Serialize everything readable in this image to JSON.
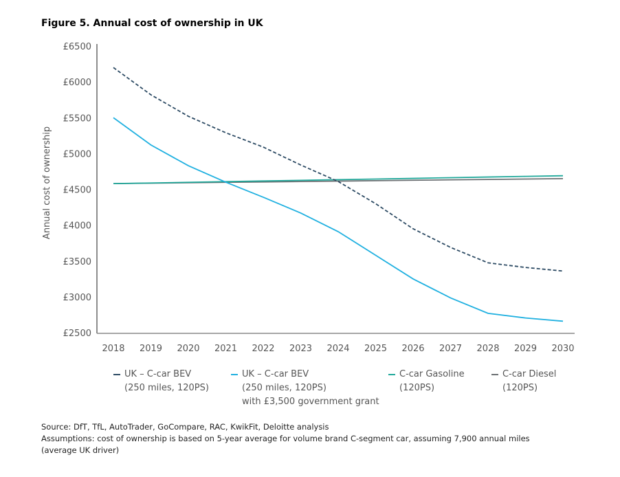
{
  "chart_data": {
    "type": "line",
    "title": "Figure 5. Annual cost of ownership in UK",
    "ylabel": "Annual cost of ownership",
    "xlabel": "",
    "x": [
      2018,
      2019,
      2020,
      2021,
      2022,
      2023,
      2024,
      2025,
      2026,
      2027,
      2028,
      2029,
      2030
    ],
    "ylim": [
      2500,
      6500
    ],
    "yticks": [
      2500,
      3000,
      3500,
      4000,
      4500,
      5000,
      5500,
      6000,
      6500
    ],
    "ytick_labels": [
      "£2500",
      "£3000",
      "£3500",
      "£4000",
      "£4500",
      "£5000",
      "£5500",
      "£6000",
      "£6500"
    ],
    "grid": false,
    "legend_position": "bottom",
    "series": [
      {
        "name": "UK – C-car BEV (250 miles, 120PS)",
        "label_lines": [
          "UK – C-car BEV",
          "(250 miles, 120PS)"
        ],
        "color": "#2c4a63",
        "dash": true,
        "values": [
          6200,
          5820,
          5520,
          5290,
          5090,
          4840,
          4610,
          4300,
          3950,
          3690,
          3475,
          3410,
          3360
        ]
      },
      {
        "name": "UK – C-car BEV (250 miles, 120PS) with £3,500 government grant",
        "label_lines": [
          "UK – C-car BEV",
          "(250 miles, 120PS)",
          "with £3,500 government grant"
        ],
        "color": "#1fb0e0",
        "dash": false,
        "values": [
          5500,
          5120,
          4830,
          4600,
          4390,
          4170,
          3910,
          3580,
          3250,
          2985,
          2770,
          2705,
          2660
        ]
      },
      {
        "name": "C-car Gasoline (120PS)",
        "label_lines": [
          "C-car Gasoline",
          "(120PS)"
        ],
        "color": "#1fa89a",
        "dash": false,
        "values": [
          4580,
          4589,
          4598,
          4608,
          4617,
          4626,
          4635,
          4644,
          4653,
          4663,
          4672,
          4681,
          4690
        ]
      },
      {
        "name": "C-car Diesel (120PS)",
        "label_lines": [
          "C-car Diesel",
          "(120PS)"
        ],
        "color": "#6b6f72",
        "dash": false,
        "values": [
          4580,
          4586,
          4592,
          4598,
          4603,
          4609,
          4615,
          4621,
          4627,
          4633,
          4638,
          4644,
          4650
        ]
      }
    ]
  },
  "notes": {
    "source": "Source: DfT, TfL, AutoTrader, GoCompare, RAC, KwikFit, Deloitte analysis",
    "assumptions": "Assumptions: cost of ownership is based on 5-year average for volume brand C-segment car, assuming 7,900 annual miles",
    "assumptions_cont": "(average UK driver)"
  }
}
